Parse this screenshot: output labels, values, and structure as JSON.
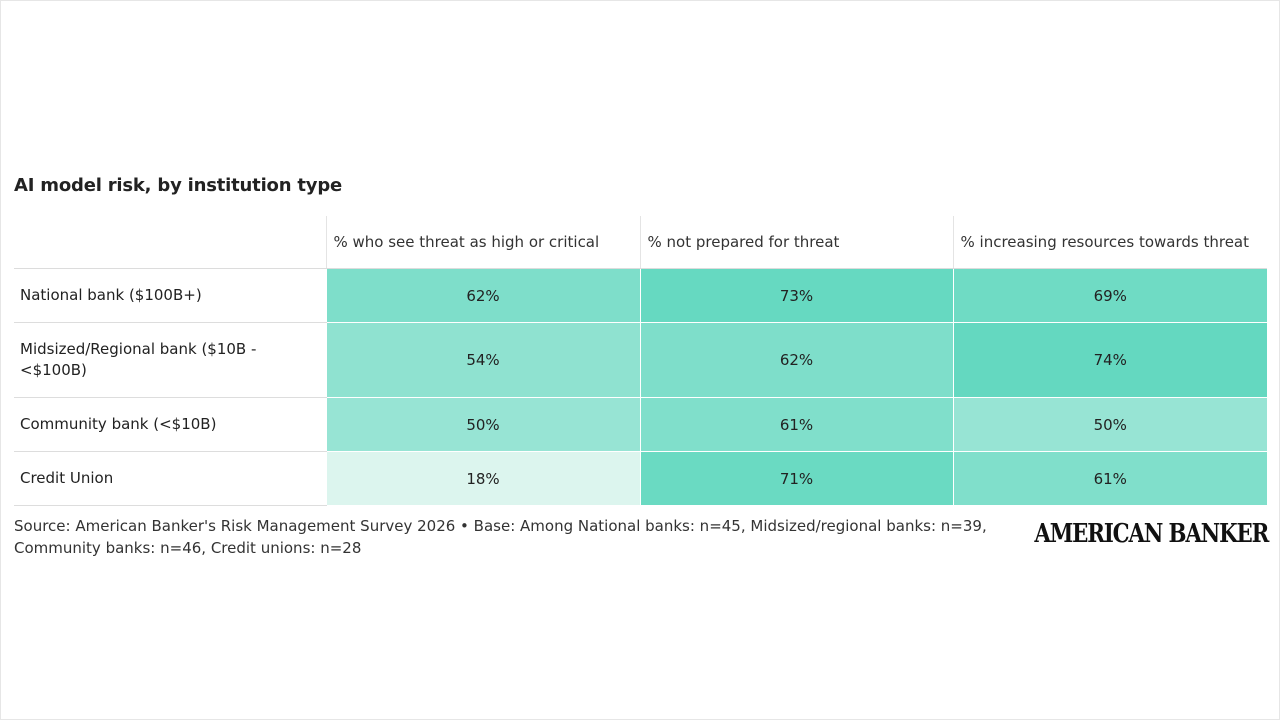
{
  "chart_data": {
    "type": "heatmap",
    "title": "AI model risk, by institution type",
    "columns": [
      "% who see threat as high or critical",
      "% not prepared for threat",
      "% increasing resources towards threat"
    ],
    "rows": [
      {
        "label": "National bank ($100B+)",
        "values": [
          62,
          73,
          69
        ],
        "display": [
          "62%",
          "73%",
          "69%"
        ]
      },
      {
        "label": "Midsized/Regional bank ($10B - <$100B)",
        "values": [
          54,
          62,
          74
        ],
        "display": [
          "54%",
          "62%",
          "74%"
        ]
      },
      {
        "label": "Community bank (<$10B)",
        "values": [
          50,
          61,
          50
        ],
        "display": [
          "50%",
          "61%",
          "50%"
        ]
      },
      {
        "label": "Credit Union",
        "values": [
          18,
          71,
          61
        ],
        "display": [
          "18%",
          "71%",
          "61%"
        ]
      }
    ],
    "color_low": "#dcf5ee",
    "color_high": "#64d8c0",
    "value_min": 18,
    "value_max": 74
  },
  "source": "Source: American Banker's Risk Management Survey 2026 • Base: Among National banks: n=45, Midsized/regional banks: n=39, Community banks: n=46, Credit unions: n=28",
  "logo": "AMERICAN BANKER"
}
